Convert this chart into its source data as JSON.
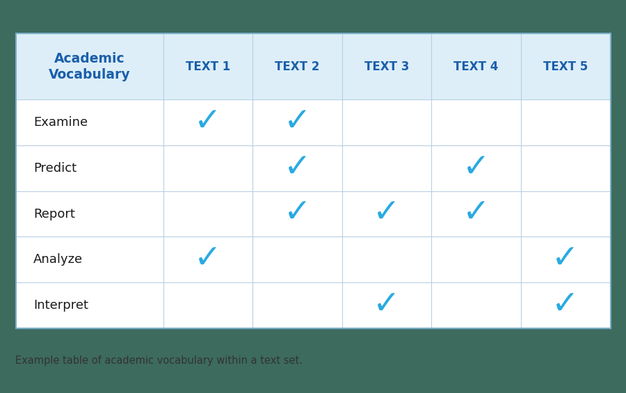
{
  "header_label": "Academic\nVocabulary",
  "col_headers": [
    "TEXT 1",
    "TEXT 2",
    "TEXT 3",
    "TEXT 4",
    "TEXT 5"
  ],
  "row_labels": [
    "Examine",
    "Predict",
    "Report",
    "Analyze",
    "Interpret"
  ],
  "checks": [
    [
      1,
      1,
      0,
      0,
      0
    ],
    [
      0,
      1,
      0,
      1,
      0
    ],
    [
      0,
      1,
      1,
      1,
      0
    ],
    [
      1,
      0,
      0,
      0,
      1
    ],
    [
      0,
      0,
      1,
      0,
      1
    ]
  ],
  "header_bg_color": "#ddeef8",
  "header_text_color": "#1a5faa",
  "row_label_color": "#1a1a1a",
  "check_color": "#29aae1",
  "grid_color": "#b8cfe0",
  "cell_bg_color": "#ffffff",
  "outer_border_color": "#7aafc8",
  "caption": "Example table of academic vocabulary within a text set.",
  "caption_color": "#333333",
  "fig_bg_color": "#3d6b5e",
  "table_bg_color": "#ffffff"
}
